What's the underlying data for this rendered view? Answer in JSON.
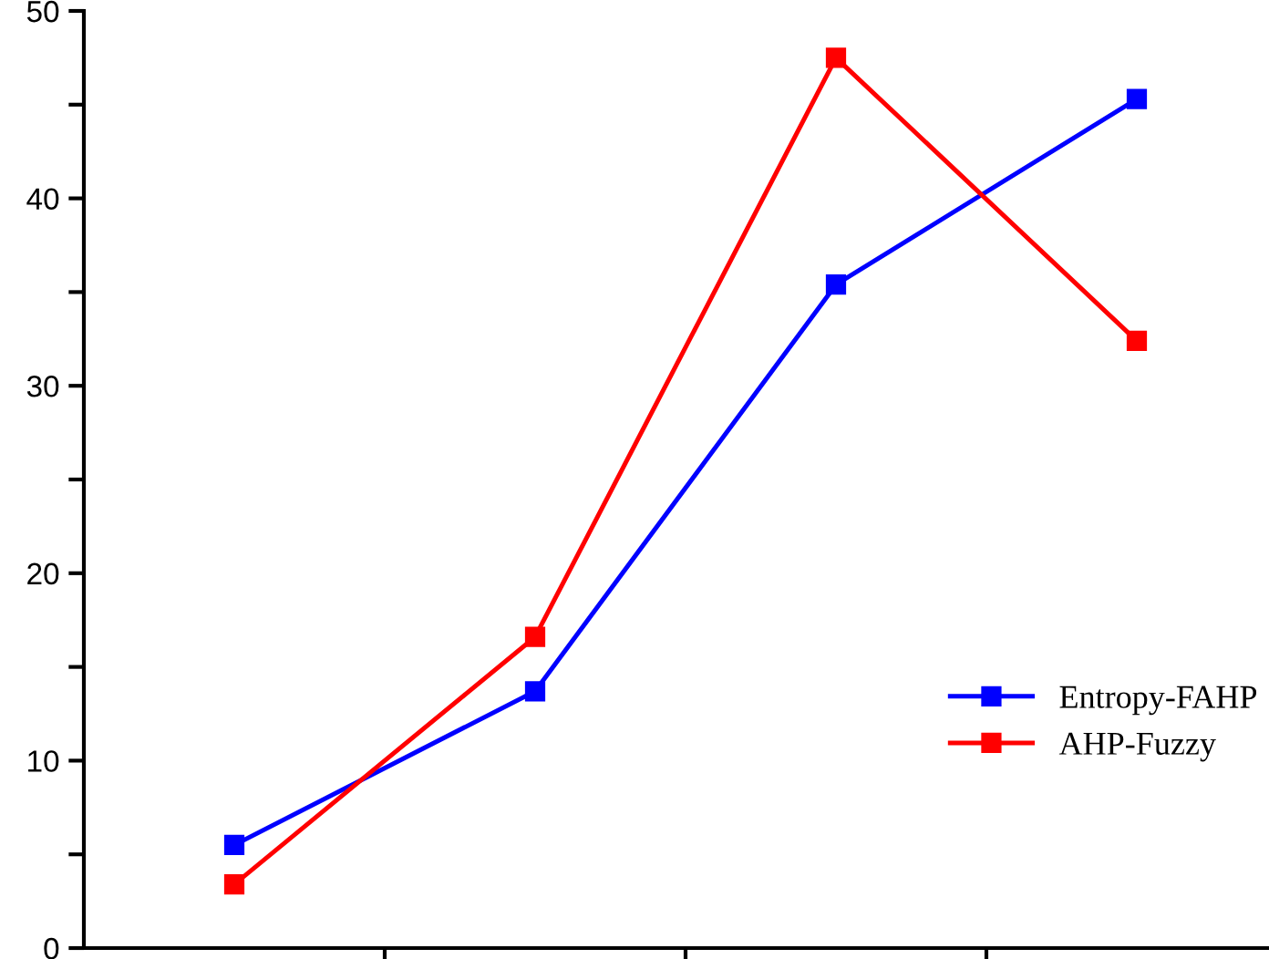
{
  "chart_data": {
    "type": "line",
    "categories": [
      null,
      null,
      null,
      null
    ],
    "series": [
      {
        "name": "Entropy-FAHP",
        "color": "#0000ff",
        "values": [
          5.5,
          13.7,
          35.4,
          45.3
        ]
      },
      {
        "name": "AHP-Fuzzy",
        "color": "#ff0000",
        "values": [
          3.4,
          16.6,
          47.5,
          32.4
        ]
      }
    ],
    "ylim": [
      0,
      50
    ],
    "yticks": [
      0,
      {
        "value": 5,
        "label": null
      },
      10,
      {
        "value": 15,
        "label": null
      },
      20,
      {
        "value": 25,
        "label": null
      },
      30,
      {
        "value": 35,
        "label": null
      },
      40,
      {
        "value": 45,
        "label": null
      },
      50
    ],
    "tick_labels": "y",
    "marker": "square",
    "line_style": "solid",
    "grid": false,
    "legend": "right"
  }
}
